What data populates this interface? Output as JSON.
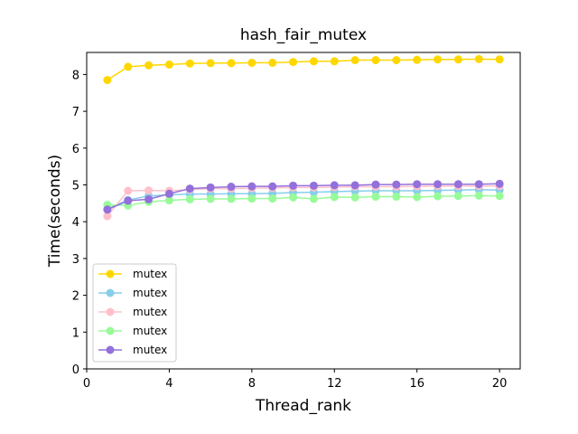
{
  "chart_data": {
    "type": "line",
    "title": "hash_fair_mutex",
    "xlabel": "Thread_rank",
    "ylabel": "Time(seconds)",
    "xlim": [
      0,
      21
    ],
    "ylim": [
      0,
      8.6
    ],
    "xticks": [
      0,
      4,
      8,
      12,
      16,
      20
    ],
    "yticks": [
      0,
      1,
      2,
      3,
      4,
      5,
      6,
      7,
      8
    ],
    "grid": false,
    "legend_position": "lower-left",
    "x": [
      1,
      2,
      3,
      4,
      5,
      6,
      7,
      8,
      9,
      10,
      11,
      12,
      13,
      14,
      15,
      16,
      17,
      18,
      19,
      20
    ],
    "series": [
      {
        "name": "mutex",
        "color": "#FFD700",
        "marker": "circle",
        "values": [
          7.85,
          8.21,
          8.25,
          8.27,
          8.3,
          8.31,
          8.31,
          8.32,
          8.32,
          8.34,
          8.36,
          8.36,
          8.39,
          8.39,
          8.39,
          8.4,
          8.41,
          8.41,
          8.42,
          8.41
        ]
      },
      {
        "name": "mutex",
        "color": "#87CEEB",
        "marker": "circle",
        "values": [
          4.35,
          4.59,
          4.7,
          4.73,
          4.75,
          4.75,
          4.76,
          4.76,
          4.77,
          4.79,
          4.8,
          4.82,
          4.83,
          4.84,
          4.84,
          4.84,
          4.85,
          4.86,
          4.87,
          4.86
        ]
      },
      {
        "name": "mutex",
        "color": "#FFC0CB",
        "marker": "circle",
        "values": [
          4.15,
          4.84,
          4.85,
          4.84,
          4.87,
          4.9,
          4.9,
          4.91,
          4.92,
          4.93,
          4.93,
          4.94,
          4.95,
          4.95,
          4.95,
          4.96,
          4.97,
          4.97,
          4.97,
          4.97
        ]
      },
      {
        "name": "mutex",
        "color": "#98FB98",
        "marker": "circle",
        "values": [
          4.46,
          4.44,
          4.54,
          4.58,
          4.61,
          4.62,
          4.62,
          4.63,
          4.63,
          4.66,
          4.62,
          4.67,
          4.66,
          4.68,
          4.68,
          4.67,
          4.69,
          4.7,
          4.71,
          4.7
        ]
      },
      {
        "name": "mutex",
        "color": "#9370DB",
        "marker": "circle",
        "values": [
          4.33,
          4.57,
          4.61,
          4.76,
          4.9,
          4.93,
          4.95,
          4.96,
          4.96,
          4.98,
          4.98,
          4.99,
          4.99,
          5.01,
          5.01,
          5.02,
          5.02,
          5.02,
          5.02,
          5.03
        ]
      }
    ]
  }
}
